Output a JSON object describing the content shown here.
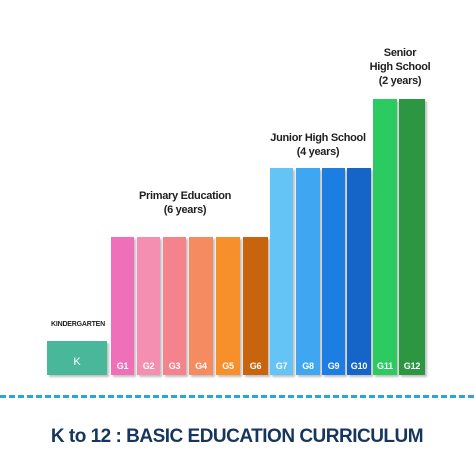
{
  "title": "K to 12 : BASIC EDUCATION CURRICULUM",
  "kindergarten_label": "KINDERGARTEN",
  "groups": [
    {
      "lines": [
        "Primary Education",
        "(6 years)"
      ]
    },
    {
      "lines": [
        "Junior High School",
        "(4 years)"
      ]
    },
    {
      "lines": [
        "Senior",
        "High School",
        "(2 years)"
      ]
    }
  ],
  "grades": [
    {
      "label": "K",
      "level": 1,
      "color": "#49b89a"
    },
    {
      "label": "G1",
      "level": 4,
      "color": "#f06fb9"
    },
    {
      "label": "G2",
      "level": 4,
      "color": "#f58fb2"
    },
    {
      "label": "G3",
      "level": 4,
      "color": "#f5838e"
    },
    {
      "label": "G4",
      "level": 4,
      "color": "#f58b61"
    },
    {
      "label": "G5",
      "level": 4,
      "color": "#f7902a"
    },
    {
      "label": "G6",
      "level": 4,
      "color": "#c8640d"
    },
    {
      "label": "G7",
      "level": 6,
      "color": "#63c4f5"
    },
    {
      "label": "G8",
      "level": 6,
      "color": "#3fa7f2"
    },
    {
      "label": "G9",
      "level": 6,
      "color": "#1c7de3"
    },
    {
      "label": "G10",
      "level": 6,
      "color": "#1565c9"
    },
    {
      "label": "G11",
      "level": 8,
      "color": "#2ccb62"
    },
    {
      "label": "G12",
      "level": 8,
      "color": "#2d9642"
    }
  ]
}
